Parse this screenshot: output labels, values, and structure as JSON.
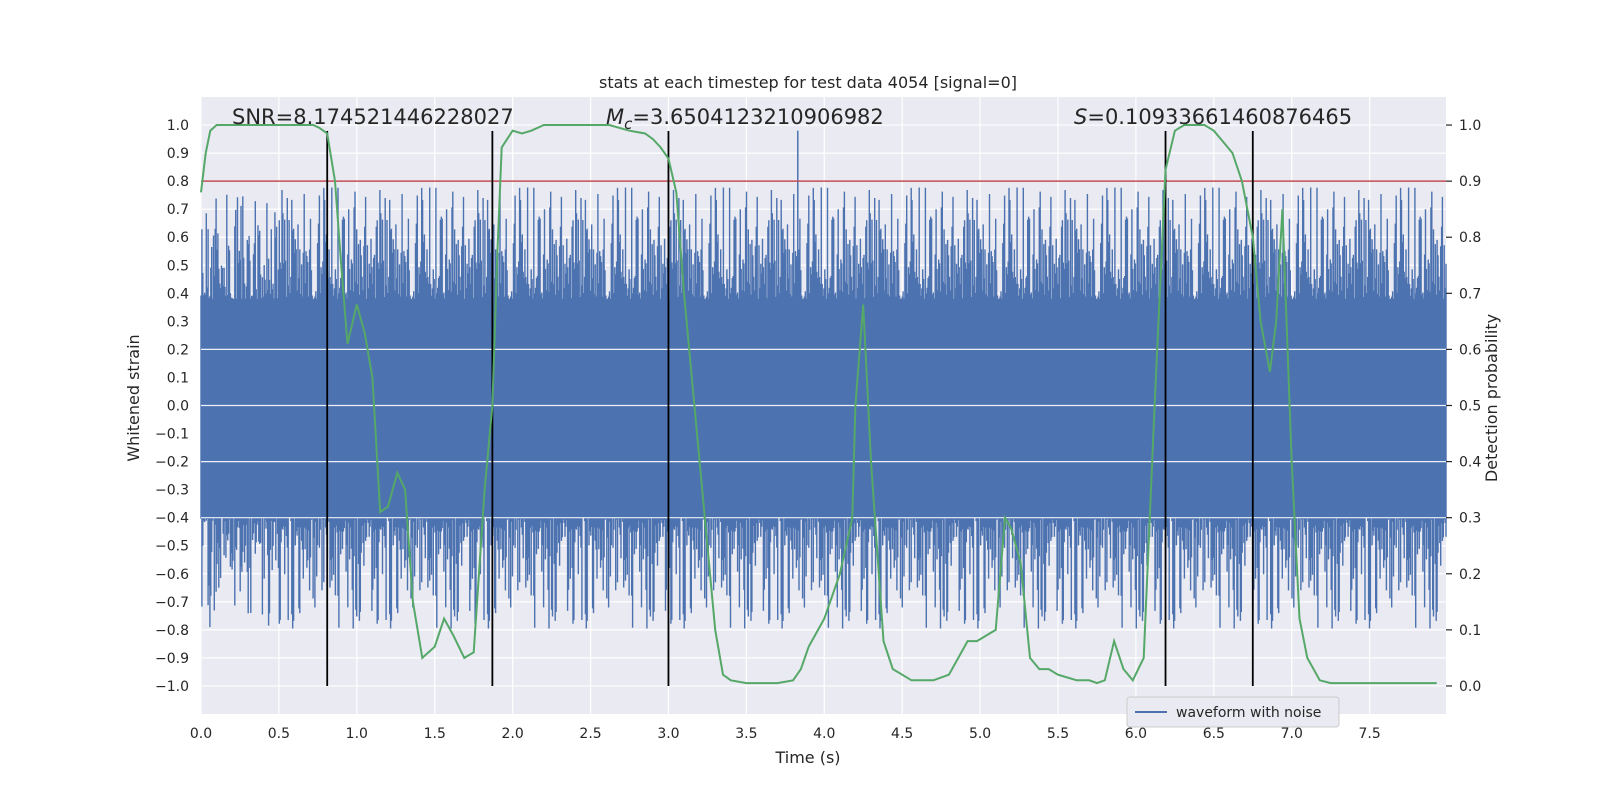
{
  "chart_data": {
    "type": "line",
    "title": "stats at each timestep for test data 4054 [signal=0]",
    "xlabel": "Time (s)",
    "ylabel_left": "Whitened strain",
    "ylabel_right": "Detection probability",
    "xlim": [
      0,
      7.99
    ],
    "ylim_left": [
      -1.1,
      1.1
    ],
    "ylim_right": [
      -0.05,
      1.05
    ],
    "grid": true,
    "x_ticks": [
      "0.0",
      "0.5",
      "1.0",
      "1.5",
      "2.0",
      "2.5",
      "3.0",
      "3.5",
      "4.0",
      "4.5",
      "5.0",
      "5.5",
      "6.0",
      "6.5",
      "7.0",
      "7.5"
    ],
    "x_tick_values": [
      0,
      0.5,
      1.0,
      1.5,
      2.0,
      2.5,
      3.0,
      3.5,
      4.0,
      4.5,
      5.0,
      5.5,
      6.0,
      6.5,
      7.0,
      7.5
    ],
    "y_left_ticks": [
      "1.0",
      "0.9",
      "0.8",
      "0.7",
      "0.6",
      "0.5",
      "0.4",
      "0.3",
      "0.2",
      "0.1",
      "0.0",
      "−0.1",
      "−0.2",
      "−0.3",
      "−0.4",
      "−0.5",
      "−0.6",
      "−0.7",
      "−0.8",
      "−0.9",
      "−1.0"
    ],
    "y_left_tick_values": [
      1.0,
      0.9,
      0.8,
      0.7,
      0.6,
      0.5,
      0.4,
      0.3,
      0.2,
      0.1,
      0.0,
      -0.1,
      -0.2,
      -0.3,
      -0.4,
      -0.5,
      -0.6,
      -0.7,
      -0.8,
      -0.9,
      -1.0
    ],
    "y_right_ticks": [
      "1.0",
      "0.9",
      "0.8",
      "0.7",
      "0.6",
      "0.5",
      "0.4",
      "0.3",
      "0.2",
      "0.1",
      "0.0"
    ],
    "y_right_tick_values": [
      1.0,
      0.9,
      0.8,
      0.7,
      0.6,
      0.5,
      0.4,
      0.3,
      0.2,
      0.1,
      0.0
    ],
    "annotations": {
      "snr": "SNR=8.174521446228027",
      "mc_symbol": "M",
      "mc_sub": "c",
      "mc_value": "=3.6504123210906982",
      "s_symbol": "S",
      "s_value": "=0.10933661460876465"
    },
    "threshold": {
      "value": 0.9,
      "axis": "right",
      "color": "#c44e52"
    },
    "vertical_lines": [
      0.81,
      1.87,
      3.0,
      6.19,
      6.75
    ],
    "series": [
      {
        "name": "waveform with noise",
        "axis": "left",
        "color": "#4c72b0",
        "kind": "noise",
        "x_range": [
          0,
          7.99
        ],
        "dense_band": [
          -0.4,
          0.38
        ],
        "max_abs_peak": 0.98
      },
      {
        "axis": "right",
        "color": "#55a868",
        "x": [
          0.0,
          0.03,
          0.06,
          0.1,
          0.2,
          0.4,
          0.6,
          0.72,
          0.76,
          0.81,
          0.86,
          0.9,
          0.94,
          1.0,
          1.05,
          1.1,
          1.15,
          1.2,
          1.26,
          1.31,
          1.36,
          1.42,
          1.5,
          1.56,
          1.62,
          1.69,
          1.75,
          1.82,
          1.87,
          1.9,
          1.93,
          2.0,
          2.06,
          2.12,
          2.2,
          2.3,
          2.4,
          2.5,
          2.62,
          2.75,
          2.85,
          2.9,
          2.95,
          3.0,
          3.05,
          3.1,
          3.2,
          3.3,
          3.35,
          3.4,
          3.5,
          3.7,
          3.8,
          3.85,
          3.9,
          4.0,
          4.1,
          4.18,
          4.2,
          4.25,
          4.3,
          4.38,
          4.44,
          4.5,
          4.56,
          4.62,
          4.7,
          4.8,
          4.86,
          4.92,
          4.98,
          5.04,
          5.1,
          5.16,
          5.2,
          5.26,
          5.32,
          5.38,
          5.44,
          5.5,
          5.56,
          5.62,
          5.7,
          5.75,
          5.8,
          5.86,
          5.92,
          5.98,
          6.05,
          6.12,
          6.19,
          6.25,
          6.31,
          6.38,
          6.44,
          6.5,
          6.56,
          6.62,
          6.68,
          6.75,
          6.8,
          6.86,
          6.9,
          6.94,
          7.0,
          7.05,
          7.1,
          7.18,
          7.25,
          7.3,
          7.4,
          7.5,
          7.6,
          7.7,
          7.8,
          7.93
        ],
        "values": [
          0.88,
          0.95,
          0.99,
          1.0,
          1.0,
          1.0,
          1.0,
          1.0,
          0.995,
          0.985,
          0.9,
          0.75,
          0.61,
          0.68,
          0.63,
          0.55,
          0.31,
          0.32,
          0.38,
          0.35,
          0.15,
          0.05,
          0.07,
          0.12,
          0.09,
          0.05,
          0.06,
          0.35,
          0.5,
          0.76,
          0.96,
          0.99,
          0.985,
          0.99,
          1.0,
          1.0,
          1.0,
          1.0,
          1.0,
          0.99,
          0.985,
          0.975,
          0.96,
          0.94,
          0.88,
          0.7,
          0.4,
          0.1,
          0.02,
          0.01,
          0.005,
          0.005,
          0.01,
          0.03,
          0.07,
          0.12,
          0.2,
          0.3,
          0.5,
          0.68,
          0.4,
          0.08,
          0.03,
          0.02,
          0.01,
          0.01,
          0.01,
          0.02,
          0.05,
          0.08,
          0.08,
          0.09,
          0.1,
          0.3,
          0.28,
          0.22,
          0.05,
          0.03,
          0.03,
          0.02,
          0.015,
          0.01,
          0.01,
          0.005,
          0.01,
          0.08,
          0.03,
          0.01,
          0.05,
          0.5,
          0.92,
          0.99,
          1.0,
          1.0,
          1.0,
          0.99,
          0.97,
          0.95,
          0.9,
          0.8,
          0.65,
          0.56,
          0.65,
          0.85,
          0.4,
          0.12,
          0.05,
          0.01,
          0.005,
          0.005,
          0.005,
          0.005,
          0.005,
          0.005,
          0.005,
          0.005
        ]
      }
    ]
  }
}
